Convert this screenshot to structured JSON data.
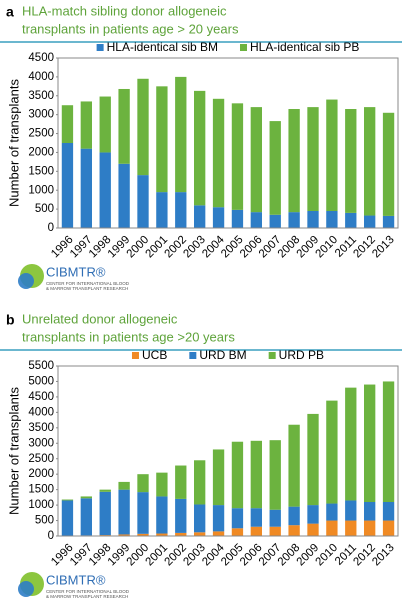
{
  "chart_data": [
    {
      "type": "stacked-bar",
      "panel": "a",
      "title": [
        "HLA-match sibling donor allogeneic",
        "transplants in patients age > 20 years"
      ],
      "y_label": "Number of transplants",
      "categories": [
        "1996",
        "1997",
        "1998",
        "1999",
        "2000",
        "2001",
        "2002",
        "2003",
        "2004",
        "2005",
        "2006",
        "2007",
        "2008",
        "2009",
        "2010",
        "2011",
        "2012",
        "2013"
      ],
      "series": [
        {
          "name": "HLA-identical sib BM",
          "color": "#2e7dc6",
          "values": [
            2250,
            2100,
            2000,
            1700,
            1400,
            950,
            950,
            600,
            550,
            480,
            420,
            350,
            420,
            450,
            450,
            400,
            330,
            320
          ]
        },
        {
          "name": "HLA-identical sib PB",
          "color": "#6cb33f",
          "values": [
            1000,
            1250,
            1480,
            1980,
            2550,
            2800,
            3050,
            3030,
            2870,
            2820,
            2780,
            2480,
            2730,
            2750,
            2950,
            2750,
            2870,
            2730
          ]
        }
      ],
      "ylim": [
        0,
        4500
      ],
      "yticks": [
        0,
        500,
        1000,
        1500,
        2000,
        2500,
        3000,
        3500,
        4000,
        4500
      ],
      "logo": {
        "name": "CIBMTR®",
        "subtitle": [
          "CENTER FOR INTERNATIONAL BLOOD",
          "& MARROW TRANSPLANT RESEARCH"
        ]
      }
    },
    {
      "type": "stacked-bar",
      "panel": "b",
      "title": [
        "Unrelated donor allogeneic",
        "transplants in patients age >20 years"
      ],
      "y_label": "Number of transplants",
      "categories": [
        "1996",
        "1997",
        "1998",
        "1999",
        "2000",
        "2001",
        "2002",
        "2003",
        "2004",
        "2005",
        "2006",
        "2007",
        "2008",
        "2009",
        "2010",
        "2011",
        "2012",
        "2013"
      ],
      "series": [
        {
          "name": "UCB",
          "color": "#f08a24",
          "values": [
            0,
            20,
            30,
            50,
            70,
            80,
            100,
            120,
            150,
            250,
            300,
            300,
            350,
            400,
            500,
            500,
            500,
            500
          ]
        },
        {
          "name": "URD BM",
          "color": "#2e7dc6",
          "values": [
            1150,
            1200,
            1400,
            1450,
            1350,
            1200,
            1100,
            900,
            850,
            650,
            600,
            550,
            600,
            600,
            550,
            650,
            600,
            600
          ]
        },
        {
          "name": "URD PB",
          "color": "#6cb33f",
          "values": [
            30,
            60,
            70,
            250,
            580,
            770,
            1080,
            1430,
            1800,
            2150,
            2180,
            2250,
            2650,
            2950,
            3330,
            3650,
            3800,
            3900
          ]
        }
      ],
      "ylim": [
        0,
        5500
      ],
      "yticks": [
        0,
        500,
        1000,
        1500,
        2000,
        2500,
        3000,
        3500,
        4000,
        4500,
        5000,
        5500
      ],
      "logo": {
        "name": "CIBMTR®",
        "subtitle": [
          "CENTER FOR INTERNATIONAL BLOOD",
          "& MARROW TRANSPLANT RESEARCH"
        ]
      }
    }
  ]
}
